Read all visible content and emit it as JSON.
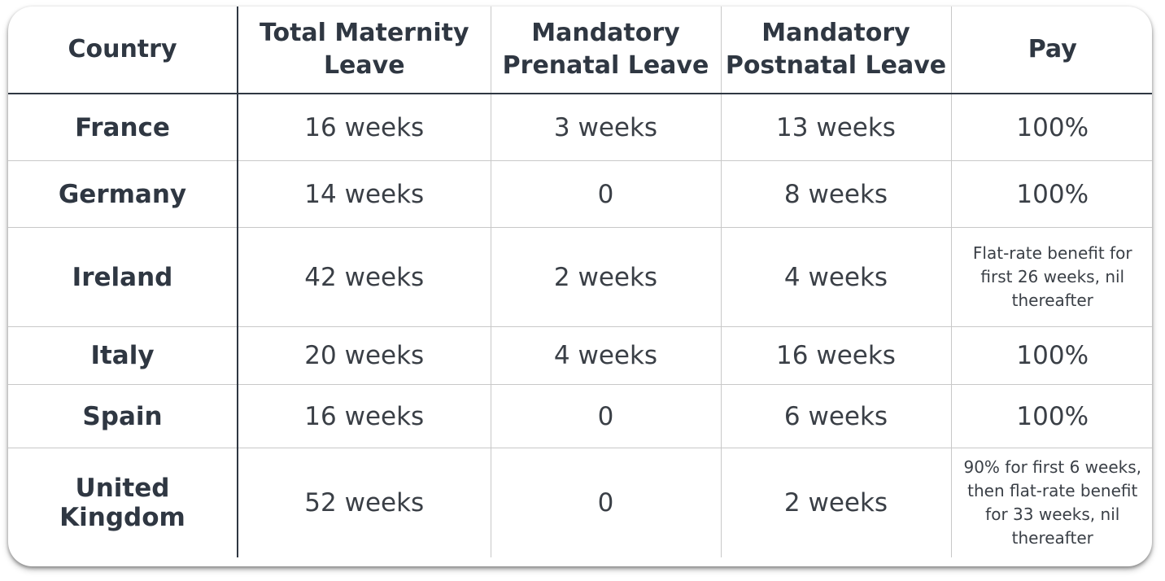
{
  "headers": {
    "country": "Country",
    "total": "Total Maternity Leave",
    "prenatal": "Mandatory Prenatal Leave",
    "postnatal": "Mandatory Postnatal Leave",
    "pay": "Pay"
  },
  "rows": [
    {
      "country": "France",
      "total": "16 weeks",
      "prenatal": "3 weeks",
      "postnatal": "13 weeks",
      "pay": "100%"
    },
    {
      "country": "Germany",
      "total": "14 weeks",
      "prenatal": "0",
      "postnatal": "8 weeks",
      "pay": "100%"
    },
    {
      "country": "Ireland",
      "total": "42 weeks",
      "prenatal": "2 weeks",
      "postnatal": "4 weeks",
      "pay": "Flat-rate benefit for first 26 weeks, nil thereafter"
    },
    {
      "country": "Italy",
      "total": "20 weeks",
      "prenatal": "4 weeks",
      "postnatal": "16 weeks",
      "pay": "100%"
    },
    {
      "country": "Spain",
      "total": "16 weeks",
      "prenatal": "0",
      "postnatal": "6 weeks",
      "pay": "100%"
    },
    {
      "country": "United Kingdom",
      "total": "52 weeks",
      "prenatal": "0",
      "postnatal": "2 weeks",
      "pay": "90% for first 6 weeks, then flat-rate benefit for 33 weeks, nil thereafter"
    }
  ]
}
